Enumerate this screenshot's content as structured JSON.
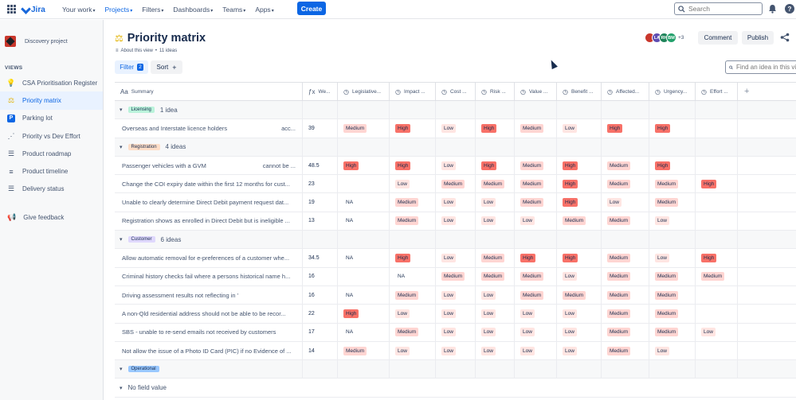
{
  "topnav": {
    "logo": "Jira",
    "items": [
      {
        "label": "Your work",
        "active": false
      },
      {
        "label": "Projects",
        "active": true
      },
      {
        "label": "Filters",
        "active": false
      },
      {
        "label": "Dashboards",
        "active": false
      },
      {
        "label": "Teams",
        "active": false
      },
      {
        "label": "Apps",
        "active": false
      }
    ],
    "create_label": "Create",
    "search_placeholder": "Search"
  },
  "sidebar": {
    "project_name": "Discovery project",
    "views_title": "VIEWS",
    "items": [
      {
        "label": "CSA Prioritisation Register",
        "icon": "lightbulb-icon"
      },
      {
        "label": "Priority matrix",
        "icon": "scales-icon",
        "active": true
      },
      {
        "label": "Parking lot",
        "icon": "parking-icon"
      },
      {
        "label": "Priority vs Dev Effort",
        "icon": "scatter-icon"
      },
      {
        "label": "Product roadmap",
        "icon": "roadmap-icon"
      },
      {
        "label": "Product timeline",
        "icon": "timeline-icon"
      },
      {
        "label": "Delivery status",
        "icon": "list-icon"
      }
    ],
    "feedback": "Give feedback"
  },
  "header": {
    "title": "Priority matrix",
    "about": "About this view",
    "ideas_count": "11 ideas",
    "avatars": [
      {
        "initials": "",
        "color": "#c9372c"
      },
      {
        "initials": "LA",
        "color": "#5e4db2"
      },
      {
        "initials": "RH",
        "color": "#1f845a"
      },
      {
        "initials": "BM",
        "color": "#22a06b"
      }
    ],
    "more_count": "+3",
    "comment_label": "Comment",
    "publish_label": "Publish"
  },
  "toolbar": {
    "filter_label": "Filter",
    "filter_count": "2",
    "sort_label": "Sort",
    "find_placeholder": "Find an idea in this view"
  },
  "columns": [
    "Summary",
    "We...",
    "Legislative...",
    "Impact ...",
    "Cost ...",
    "Risk ...",
    "Value ...",
    "Benefit ...",
    "Affected...",
    "Urgency...",
    "Effort ..."
  ],
  "groups": [
    {
      "label": "Licensing",
      "count": "1 idea",
      "color": "#baf3db",
      "rows": [
        {
          "summary": "Overseas and Interstate licence holders",
          "extra": "acc...",
          "we": "39",
          "vals": [
            "Medium",
            "High",
            "Low",
            "High",
            "Medium",
            "Low",
            "High",
            "High",
            ""
          ]
        }
      ]
    },
    {
      "label": "Registration",
      "count": "4 ideas",
      "color": "#fedec8",
      "rows": [
        {
          "summary": "Passenger vehicles with a GVM",
          "extra": "cannot be ...",
          "we": "48.5",
          "vals": [
            "High",
            "High",
            "Low",
            "High",
            "Medium",
            "High",
            "Medium",
            "High",
            ""
          ]
        },
        {
          "summary": "Change the COI expiry date within the first 12 months for cust...",
          "extra": "",
          "we": "23",
          "vals": [
            "",
            "Low",
            "Medium",
            "Medium",
            "Medium",
            "High",
            "Medium",
            "Medium",
            "High"
          ]
        },
        {
          "summary": "Unable to clearly determine Direct Debit payment request dat...",
          "extra": "",
          "we": "19",
          "vals": [
            "NA",
            "Medium",
            "Low",
            "Low",
            "Medium",
            "High",
            "Low",
            "Medium",
            ""
          ]
        },
        {
          "summary": "Registration shows as enrolled in Direct Debit but is ineligible ...",
          "extra": "",
          "we": "13",
          "vals": [
            "NA",
            "Medium",
            "Low",
            "Low",
            "Low",
            "Medium",
            "Medium",
            "Low",
            ""
          ]
        }
      ]
    },
    {
      "label": "Customer",
      "count": "6 ideas",
      "color": "#dfd8fd",
      "rows": [
        {
          "summary": "Allow automatic removal for e-preferences of a customer whe...",
          "extra": "",
          "we": "34.5",
          "vals": [
            "NA",
            "High",
            "Low",
            "Medium",
            "High",
            "High",
            "Medium",
            "Low",
            "High"
          ]
        },
        {
          "summary": "Criminal history checks fail where a persons historical name h...",
          "extra": "",
          "we": "16",
          "vals": [
            "",
            "NA",
            "Medium",
            "Medium",
            "Medium",
            "Low",
            "Medium",
            "Medium",
            "Medium"
          ]
        },
        {
          "summary": "Driving assessment results not reflecting in '",
          "extra": "",
          "we": "16",
          "vals": [
            "NA",
            "Medium",
            "Low",
            "Low",
            "Medium",
            "Medium",
            "Medium",
            "Medium",
            ""
          ]
        },
        {
          "summary": "A non-Qld residential address should not be able to be recor...",
          "extra": "",
          "we": "22",
          "vals": [
            "High",
            "Low",
            "Low",
            "Low",
            "Low",
            "Low",
            "Medium",
            "Medium",
            ""
          ]
        },
        {
          "summary": "SBS - unable to re-send emails not received by customers",
          "extra": "",
          "we": "17",
          "vals": [
            "NA",
            "Medium",
            "Low",
            "Low",
            "Low",
            "Low",
            "Medium",
            "Medium",
            "Low"
          ]
        },
        {
          "summary": "Not allow the issue of a Photo ID Card (PIC) if no Evidence of ...",
          "extra": "",
          "we": "14",
          "vals": [
            "Medium",
            "Low",
            "Low",
            "Low",
            "Low",
            "Low",
            "Medium",
            "Low",
            ""
          ]
        }
      ]
    },
    {
      "label": "Operational",
      "count": "",
      "color": "#99c8ff",
      "rows": []
    }
  ],
  "no_field": "No field value"
}
